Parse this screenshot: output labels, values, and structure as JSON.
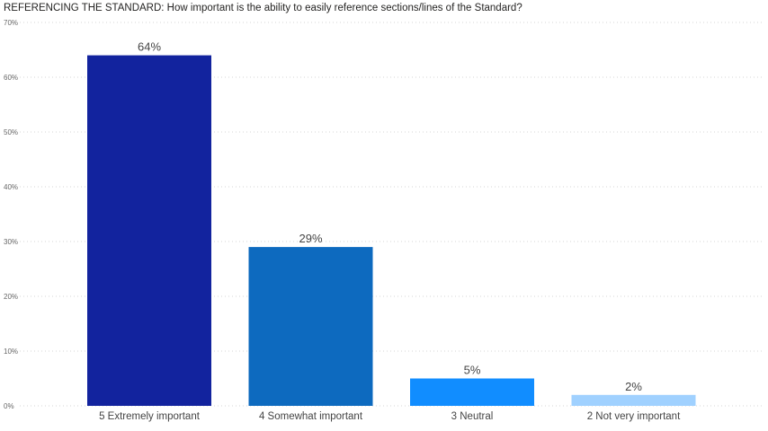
{
  "chart_data": {
    "type": "bar",
    "title": "REFERENCING THE STANDARD: How important is the ability to easily reference sections/lines of the Standard?",
    "categories": [
      "5 Extremely important",
      "4 Somewhat important",
      "3 Neutral",
      "2 Not very important"
    ],
    "values": [
      64,
      29,
      5,
      2
    ],
    "data_labels": [
      "64%",
      "29%",
      "5%",
      "2%"
    ],
    "bar_colors": [
      "#12239E",
      "#0D6ABF",
      "#118DFF",
      "#A0D1FF"
    ],
    "ylim": [
      0,
      70
    ],
    "y_ticks": [
      0,
      10,
      20,
      30,
      40,
      50,
      60,
      70
    ],
    "y_tick_labels": [
      "0%",
      "10%",
      "20%",
      "30%",
      "40%",
      "50%",
      "60%",
      "70%"
    ],
    "xlabel": "",
    "ylabel": "",
    "grid": true,
    "legend": "none"
  }
}
